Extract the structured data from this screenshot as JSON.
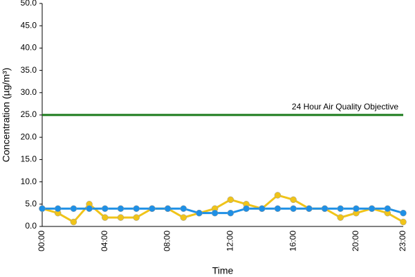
{
  "chart_data": {
    "type": "line",
    "x_label": "Time",
    "y_label": "Concentration (µg/m³)",
    "categories": [
      "00:00",
      null,
      null,
      null,
      "04:00",
      null,
      null,
      null,
      "08:00",
      null,
      null,
      null,
      "12:00",
      null,
      null,
      null,
      "16:00",
      null,
      null,
      null,
      "20:00",
      null,
      null,
      "23:00"
    ],
    "series": [
      {
        "color": "#f0c419",
        "values": [
          4,
          3,
          1,
          5,
          2,
          2,
          2,
          4,
          4,
          2,
          3,
          4,
          6,
          5,
          4,
          7,
          6,
          4,
          4,
          2,
          3,
          4,
          3,
          1
        ]
      },
      {
        "color": "#1e90e6",
        "values": [
          4,
          4,
          4,
          4,
          4,
          4,
          4,
          4,
          4,
          4,
          3,
          3,
          3,
          4,
          4,
          4,
          4,
          4,
          4,
          4,
          4,
          4,
          4,
          3
        ]
      }
    ],
    "threshold": {
      "value": 25,
      "label": "24 Hour Air Quality Objective",
      "color": "#1a7a1a"
    },
    "ylim": [
      0,
      50
    ],
    "yticks": [
      {
        "value": 0,
        "label": "0.0"
      },
      {
        "value": 5,
        "label": "5.0"
      },
      {
        "value": 10,
        "label": "10.0"
      },
      {
        "value": 15,
        "label": "15.0"
      },
      {
        "value": 20,
        "label": "20.0"
      },
      {
        "value": 25,
        "label": "25.0"
      },
      {
        "value": 30,
        "label": "30.0"
      },
      {
        "value": 35,
        "label": "35.0"
      },
      {
        "value": 40,
        "label": "40.0"
      },
      {
        "value": 45,
        "label": "45.0"
      },
      {
        "value": 50,
        "label": "50.0"
      }
    ],
    "grid": false
  }
}
